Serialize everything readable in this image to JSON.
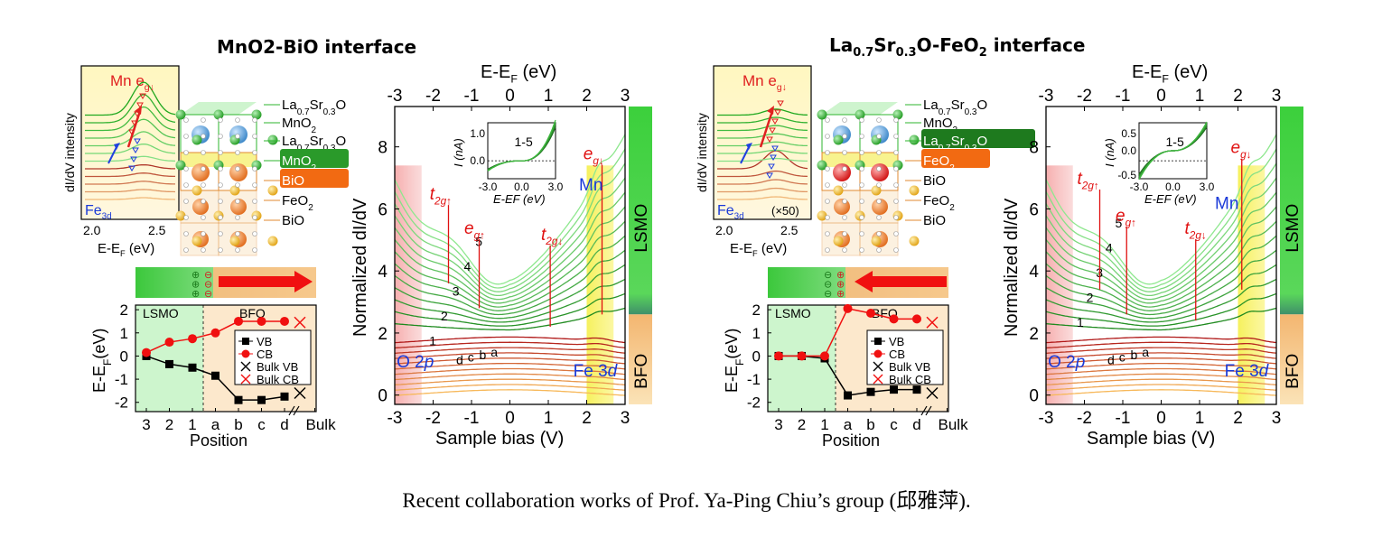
{
  "titles": {
    "left": "MnO2-BiO interface",
    "right_main": "La",
    "right_sub1": "0.7",
    "right_sr": "Sr",
    "right_sub2": "0.3",
    "right_o": "O-FeO",
    "right_sub3": "2",
    "right_tail": " interface"
  },
  "caption": "Recent collaboration works of Prof. Ya-Ping Chiu’s group (邱雅萍).",
  "colors": {
    "green": "#2db52d",
    "light_green": "#7fdc7f",
    "red": "#e03a3a",
    "dark_red": "#a01818",
    "orange": "#f0a040",
    "blue": "#1a3ad8",
    "pink_band": "#f4b8b8",
    "yellow_band": "#f5f070",
    "lsmo_bar": "#3cc83c",
    "bfo_bar": "#f5c880"
  },
  "layers_left": [
    "La0.7Sr0.3O",
    "MnO2",
    "La0.7Sr0.3O",
    "MnO2",
    "BiO",
    "FeO2",
    "BiO"
  ],
  "layers_right": [
    "La0.7Sr0.3O",
    "MnO2",
    "La0.7Sr0.3O",
    "FeO2",
    "BiO",
    "FeO2",
    "BiO"
  ],
  "inset_left": {
    "title": "Mn e",
    "title_sub": "g↓",
    "fe_label": "Fe",
    "fe_sub": "3d",
    "ylabel": "dI/dV intensity",
    "xlabel": "E-E",
    "xlabel_sub": "F",
    "xlabel_unit": " (eV)",
    "xticks": [
      "2.0",
      "2.5"
    ]
  },
  "inset_right": {
    "title": "Mn e",
    "title_sub": "g↓",
    "fe_label": "Fe",
    "fe_sub": "3d",
    "scale_note": "(×50)",
    "ylabel": "dI/dV intensity",
    "xlabel": "E-E",
    "xlabel_sub": "F",
    "xlabel_unit": " (eV)",
    "xticks": [
      "2.0",
      "2.5"
    ]
  },
  "chart_data": [
    {
      "type": "line",
      "id": "band-offset-left",
      "categories": [
        "3",
        "2",
        "1",
        "a",
        "b",
        "c",
        "d",
        "Bulk"
      ],
      "xlabel": "Position",
      "ylabel": "E-E",
      "ylabel_sub": "F",
      "ylabel_unit": "(eV)",
      "ylim": [
        -2.4,
        2.2
      ],
      "yticks": [
        "2",
        "1",
        "0",
        "-1",
        "-2"
      ],
      "region_labels": [
        "LSMO",
        "BFO"
      ],
      "series": [
        {
          "name": "VB",
          "values": [
            0.0,
            -0.35,
            -0.5,
            -0.85,
            -1.9,
            -1.9,
            -1.75,
            null
          ]
        },
        {
          "name": "CB",
          "values": [
            0.15,
            0.6,
            0.75,
            1.0,
            1.5,
            1.5,
            1.5,
            null
          ]
        },
        {
          "name": "Bulk VB",
          "values": [
            null,
            null,
            null,
            null,
            null,
            null,
            null,
            -1.6
          ]
        },
        {
          "name": "Bulk CB",
          "values": [
            null,
            null,
            null,
            null,
            null,
            null,
            null,
            1.45
          ]
        }
      ],
      "charges_top": [
        "⊕",
        "⊕",
        "⊕"
      ],
      "charges_bottom": [
        "⊖",
        "⊖",
        "⊖"
      ]
    },
    {
      "type": "line",
      "id": "band-offset-right",
      "categories": [
        "3",
        "2",
        "1",
        "a",
        "b",
        "c",
        "d",
        "Bulk"
      ],
      "xlabel": "Position",
      "ylabel": "E-E",
      "ylabel_sub": "F",
      "ylabel_unit": "(eV)",
      "ylim": [
        -2.4,
        2.2
      ],
      "yticks": [
        "2",
        "1",
        "0",
        "-1",
        "-2"
      ],
      "region_labels": [
        "LSMO",
        "BFO"
      ],
      "series": [
        {
          "name": "VB",
          "values": [
            0.0,
            0.0,
            -0.1,
            -1.7,
            -1.55,
            -1.45,
            -1.45,
            null
          ]
        },
        {
          "name": "CB",
          "values": [
            0.0,
            0.0,
            0.0,
            2.05,
            1.85,
            1.6,
            1.6,
            null
          ]
        },
        {
          "name": "Bulk VB",
          "values": [
            null,
            null,
            null,
            null,
            null,
            null,
            null,
            -1.6
          ]
        },
        {
          "name": "Bulk CB",
          "values": [
            null,
            null,
            null,
            null,
            null,
            null,
            null,
            1.45
          ]
        }
      ],
      "charges_top": [
        "⊖",
        "⊖",
        "⊖"
      ],
      "charges_bottom": [
        "⊕",
        "⊕",
        "⊕"
      ]
    },
    {
      "type": "line",
      "id": "dIdV-left",
      "xlabel": "Sample bias (V)",
      "top_xlabel": "E-E",
      "top_xlabel_sub": "F",
      "top_xlabel_unit": " (eV)",
      "ylabel": "Normalized dI/dV",
      "xlim": [
        -3,
        3
      ],
      "ylim": [
        -0.3,
        9.3
      ],
      "xticks": [
        "-3",
        "-2",
        "-1",
        "0",
        "1",
        "2",
        "3"
      ],
      "top_xticks": [
        "-3",
        "-2",
        "-1",
        "0",
        "1",
        "2",
        "3"
      ],
      "yticks": [
        "0",
        "2",
        "4",
        "6",
        "8"
      ],
      "curve_labels_green": [
        "1",
        "2",
        "3",
        "4",
        "5"
      ],
      "curve_labels_red": [
        "d",
        "c",
        "b",
        "a"
      ],
      "annotations": [
        "t2g↑",
        "eg↑",
        "t2g↓",
        "eg↓",
        "Mn",
        "O 2p",
        "Fe 3d"
      ],
      "side_bar": [
        "LSMO",
        "BFO"
      ],
      "inset": {
        "label": "1-5",
        "ylabel": "I (nA)",
        "xlabel": "E-EF (eV)",
        "yticks": [
          "1.0",
          "0.0"
        ],
        "xticks": [
          "-3.0",
          "0.0",
          "3.0"
        ]
      }
    },
    {
      "type": "line",
      "id": "dIdV-right",
      "xlabel": "Sample bias (V)",
      "top_xlabel": "E-E",
      "top_xlabel_sub": "F",
      "top_xlabel_unit": " (eV)",
      "ylabel": "Normalized dI/dV",
      "xlim": [
        -3,
        3
      ],
      "ylim": [
        -0.3,
        9.3
      ],
      "xticks": [
        "-3",
        "-2",
        "-1",
        "0",
        "1",
        "2",
        "3"
      ],
      "top_xticks": [
        "-3",
        "-2",
        "-1",
        "0",
        "1",
        "2",
        "3"
      ],
      "yticks": [
        "0",
        "2",
        "4",
        "6",
        "8"
      ],
      "curve_labels_green": [
        "1",
        "2",
        "3",
        "4",
        "5"
      ],
      "curve_labels_red": [
        "d",
        "c",
        "b",
        "a"
      ],
      "annotations": [
        "t2g↑",
        "eg↑",
        "t2g↓",
        "eg↓",
        "Mn",
        "O 2p",
        "Fe 3d"
      ],
      "side_bar": [
        "LSMO",
        "BFO"
      ],
      "inset": {
        "label": "1-5",
        "ylabel": "I (nA)",
        "xlabel": "E-EF (eV)",
        "yticks": [
          "0.5",
          "0.0",
          "-0.5"
        ],
        "xticks": [
          "-3.0",
          "0.0",
          "3.0"
        ]
      }
    }
  ]
}
